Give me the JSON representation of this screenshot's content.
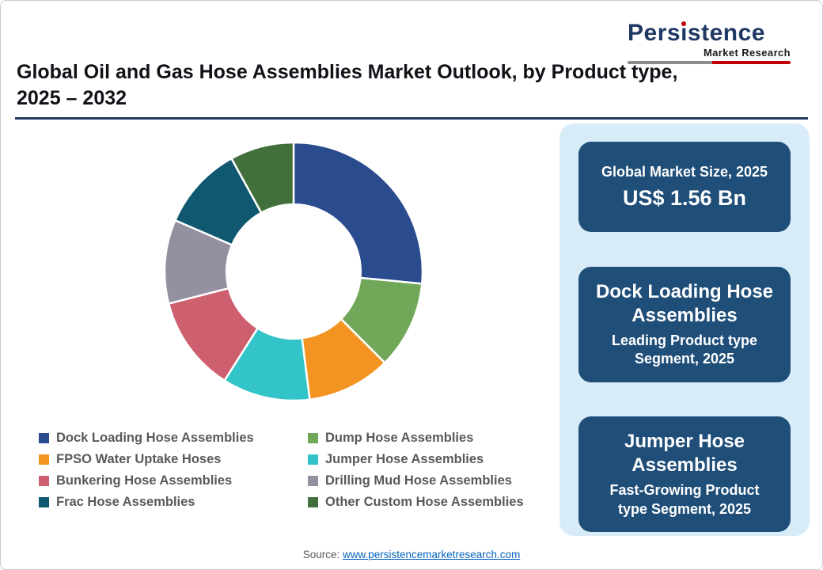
{
  "brand": {
    "name_pre": "Pers",
    "name_i": "i",
    "name_post": "stence",
    "tagline": "Market Research"
  },
  "header": {
    "title_line1": "Global Oil and Gas Hose Assemblies Market Outlook, by Product type,",
    "title_line2": "2025 – 2032"
  },
  "chart_data": {
    "type": "pie",
    "subtype": "donut",
    "start_angle_deg": 0,
    "inner_radius_ratio": 0.52,
    "unit": "% share (visual estimate, no data labels shown)",
    "segments": [
      {
        "label": "Dock Loading Hose Assemblies",
        "value": 26.5,
        "color": "#2A4B8D"
      },
      {
        "label": "Dump Hose Assemblies",
        "value": 11,
        "color": "#70A758"
      },
      {
        "label": "FPSO Water Uptake Hoses",
        "value": 10.5,
        "color": "#F39422"
      },
      {
        "label": "Jumper Hose Assemblies",
        "value": 11,
        "color": "#33C4C9"
      },
      {
        "label": "Bunkering Hose Assemblies",
        "value": 12,
        "color": "#CE5F6F"
      },
      {
        "label": "Drilling Mud Hose Assemblies",
        "value": 10.5,
        "color": "#95909F"
      },
      {
        "label": "Frac Hose Assemblies",
        "value": 10.5,
        "color": "#10586F"
      },
      {
        "label": "Other Custom Hose Assemblies",
        "value": 8,
        "color": "#42703C"
      }
    ]
  },
  "sidebar": {
    "cards": [
      {
        "title": "Global Market Size, 2025",
        "value": "US$ 1.56 Bn"
      },
      {
        "title": "Dock Loading Hose Assemblies",
        "subtitle": "Leading Product type Segment, 2025"
      },
      {
        "title": "Jumper Hose Assemblies",
        "subtitle": "Fast-Growing Product type Segment, 2025"
      }
    ]
  },
  "footer": {
    "source_label": "Source:",
    "source_link": "www.persistencemarketresearch.com"
  }
}
